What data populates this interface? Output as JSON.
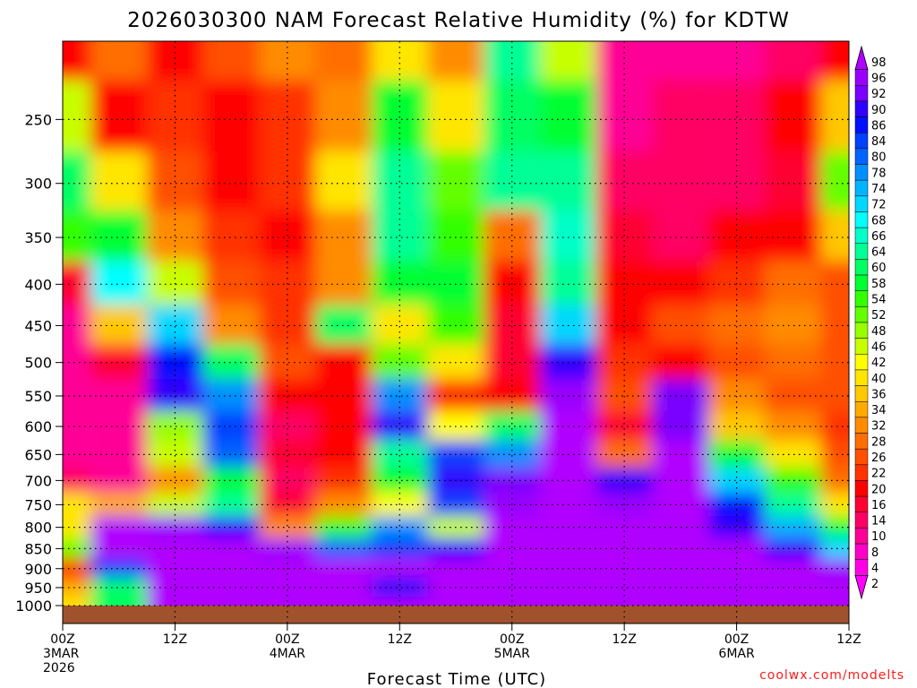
{
  "chart_data": {
    "type": "heatmap",
    "title": "2026030300 NAM Forecast Relative Humidity (%) for KDTW",
    "xlabel": "Forecast Time (UTC)",
    "ylabel": "",
    "credit": "coolwx.com/modelts",
    "x_ticks": [
      {
        "hour": 0,
        "lines": [
          "00Z",
          "3MAR",
          "2026"
        ]
      },
      {
        "hour": 12,
        "lines": [
          "12Z"
        ]
      },
      {
        "hour": 24,
        "lines": [
          "00Z",
          "4MAR"
        ]
      },
      {
        "hour": 36,
        "lines": [
          "12Z"
        ]
      },
      {
        "hour": 48,
        "lines": [
          "00Z",
          "5MAR"
        ]
      },
      {
        "hour": 60,
        "lines": [
          "12Z"
        ]
      },
      {
        "hour": 72,
        "lines": [
          "00Z",
          "6MAR"
        ]
      },
      {
        "hour": 84,
        "lines": [
          "12Z"
        ]
      }
    ],
    "xlim": [
      0,
      84
    ],
    "y_ticks": [
      250,
      300,
      350,
      400,
      450,
      500,
      550,
      600,
      650,
      700,
      750,
      800,
      850,
      900,
      950,
      1000
    ],
    "y_tick_labels": [
      "250",
      "300",
      "350",
      "400",
      "450",
      "500",
      "550",
      "600",
      "650",
      "700",
      "750",
      "800",
      "850",
      "900",
      "950",
      "1000"
    ],
    "ylim_hPa": [
      200,
      1000
    ],
    "y_scale": "log-pressure",
    "grid": true,
    "legend_placement": "right",
    "colorbar_labels": [
      "98",
      "96",
      "92",
      "90",
      "86",
      "84",
      "80",
      "78",
      "74",
      "72",
      "68",
      "66",
      "64",
      "60",
      "58",
      "54",
      "52",
      "48",
      "46",
      "42",
      "40",
      "36",
      "34",
      "32",
      "28",
      "26",
      "22",
      "20",
      "16",
      "14",
      "10",
      "8",
      "4",
      "2"
    ],
    "colorbar_colors": [
      "#b000ff",
      "#9a00ff",
      "#7a00ff",
      "#3000ff",
      "#0010ff",
      "#0040ff",
      "#0064ff",
      "#0090ff",
      "#00b4ff",
      "#00d8ff",
      "#00ffff",
      "#00ffc8",
      "#00ff96",
      "#00ff64",
      "#00ff32",
      "#32ff00",
      "#64ff00",
      "#96ff00",
      "#c8ff00",
      "#ffff00",
      "#ffe600",
      "#ffc800",
      "#ffaa00",
      "#ff8c00",
      "#ff6e00",
      "#ff5000",
      "#ff3200",
      "#ff0000",
      "#ff0032",
      "#ff0064",
      "#ff0096",
      "#ff00c8",
      "#ff00e6",
      "#ff00ff"
    ],
    "ground_color": "#a0522d",
    "rh_grid_hours": [
      0,
      6,
      12,
      18,
      24,
      30,
      36,
      42,
      48,
      54,
      60,
      66,
      72,
      78,
      84
    ],
    "rh_grid_levels": [
      200,
      250,
      300,
      350,
      400,
      450,
      500,
      550,
      600,
      650,
      700,
      750,
      800,
      850,
      900,
      950,
      1000
    ],
    "rh_values": [
      [
        20,
        28,
        20,
        24,
        30,
        28,
        40,
        30,
        62,
        46,
        10,
        10,
        10,
        14,
        20
      ],
      [
        44,
        20,
        22,
        18,
        22,
        32,
        56,
        38,
        60,
        56,
        10,
        12,
        14,
        18,
        36
      ],
      [
        60,
        40,
        24,
        20,
        22,
        38,
        62,
        50,
        64,
        64,
        12,
        14,
        14,
        16,
        52
      ],
      [
        54,
        58,
        30,
        22,
        20,
        32,
        64,
        54,
        28,
        66,
        16,
        14,
        18,
        20,
        36
      ],
      [
        16,
        68,
        44,
        24,
        22,
        30,
        58,
        58,
        18,
        64,
        20,
        18,
        22,
        28,
        26
      ],
      [
        10,
        36,
        70,
        30,
        22,
        60,
        38,
        54,
        16,
        72,
        20,
        24,
        28,
        30,
        24
      ],
      [
        10,
        16,
        86,
        60,
        24,
        20,
        52,
        40,
        16,
        90,
        22,
        18,
        26,
        28,
        24
      ],
      [
        10,
        10,
        88,
        76,
        20,
        18,
        78,
        22,
        18,
        96,
        26,
        92,
        30,
        26,
        24
      ],
      [
        10,
        10,
        48,
        84,
        14,
        18,
        88,
        42,
        60,
        98,
        16,
        92,
        36,
        30,
        22
      ],
      [
        10,
        10,
        46,
        80,
        16,
        18,
        64,
        84,
        76,
        98,
        28,
        98,
        56,
        40,
        24
      ],
      [
        14,
        10,
        30,
        56,
        14,
        22,
        58,
        90,
        92,
        98,
        90,
        98,
        72,
        54,
        28
      ],
      [
        38,
        34,
        46,
        62,
        16,
        30,
        42,
        82,
        96,
        98,
        96,
        98,
        86,
        64,
        38
      ],
      [
        40,
        98,
        96,
        90,
        30,
        54,
        78,
        46,
        98,
        98,
        98,
        98,
        90,
        74,
        58
      ],
      [
        52,
        98,
        98,
        98,
        94,
        80,
        84,
        90,
        98,
        98,
        98,
        98,
        98,
        88,
        70
      ],
      [
        18,
        84,
        98,
        98,
        98,
        98,
        98,
        98,
        98,
        98,
        98,
        98,
        98,
        98,
        94
      ],
      [
        34,
        60,
        98,
        98,
        98,
        98,
        86,
        98,
        98,
        98,
        98,
        98,
        98,
        98,
        98
      ],
      [
        40,
        60,
        98,
        98,
        98,
        98,
        98,
        98,
        98,
        98,
        98,
        98,
        98,
        98,
        98
      ]
    ]
  }
}
